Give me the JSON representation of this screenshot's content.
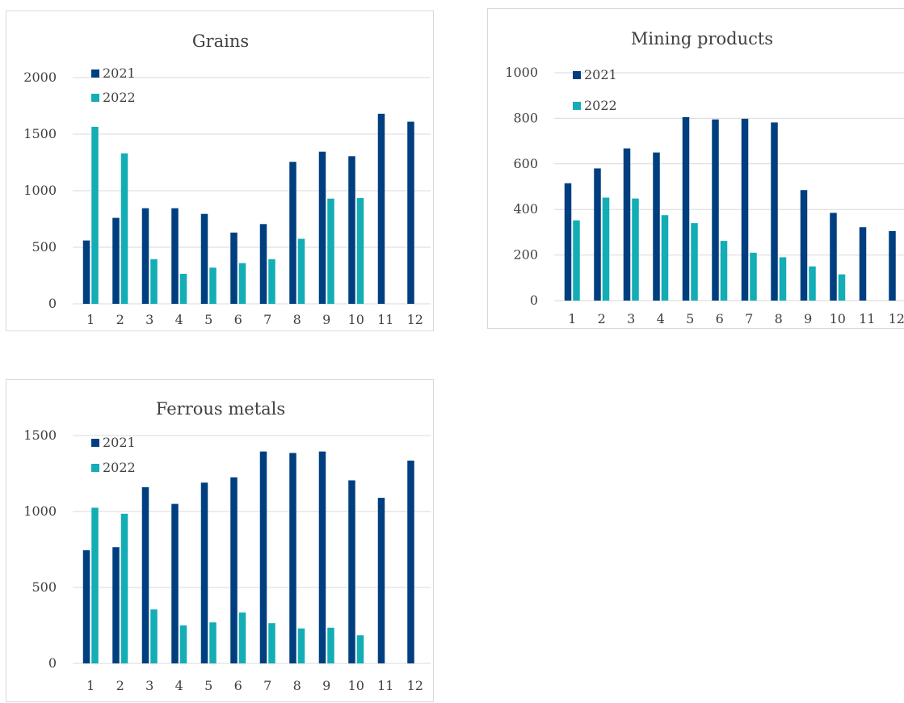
{
  "colors": {
    "s2021": "#003f7f",
    "s2022": "#13adb5",
    "grid": "#d9d9d9",
    "text": "#404040"
  },
  "chart_data": [
    {
      "type": "bar",
      "title": "Grains",
      "categories": [
        "1",
        "2",
        "3",
        "4",
        "5",
        "6",
        "7",
        "8",
        "9",
        "10",
        "11",
        "12"
      ],
      "series": [
        {
          "name": "2021",
          "values": [
            560,
            760,
            845,
            845,
            795,
            630,
            705,
            1255,
            1345,
            1305,
            1680,
            1610
          ]
        },
        {
          "name": "2022",
          "values": [
            1565,
            1330,
            395,
            265,
            320,
            360,
            395,
            575,
            930,
            935,
            null,
            null
          ]
        }
      ],
      "ylim": [
        0,
        2000
      ],
      "yticks": [
        0,
        500,
        1000,
        1500,
        2000
      ],
      "grid": true,
      "legend": "top-left"
    },
    {
      "type": "bar",
      "title": "Mining products",
      "categories": [
        "1",
        "2",
        "3",
        "4",
        "5",
        "6",
        "7",
        "8",
        "9",
        "10",
        "11",
        "12"
      ],
      "series": [
        {
          "name": "2021",
          "values": [
            515,
            580,
            668,
            650,
            805,
            795,
            798,
            782,
            485,
            385,
            322,
            305
          ]
        },
        {
          "name": "2022",
          "values": [
            352,
            452,
            448,
            375,
            340,
            262,
            210,
            190,
            150,
            115,
            null,
            null
          ]
        }
      ],
      "ylim": [
        0,
        1000
      ],
      "yticks": [
        0,
        200,
        400,
        600,
        800,
        1000
      ],
      "grid": true,
      "legend": "top-left"
    },
    {
      "type": "bar",
      "title": "Ferrous metals",
      "categories": [
        "1",
        "2",
        "3",
        "4",
        "5",
        "6",
        "7",
        "8",
        "9",
        "10",
        "11",
        "12"
      ],
      "series": [
        {
          "name": "2021",
          "values": [
            745,
            765,
            1160,
            1050,
            1190,
            1225,
            1395,
            1385,
            1395,
            1205,
            1090,
            1335
          ]
        },
        {
          "name": "2022",
          "values": [
            1025,
            985,
            355,
            250,
            270,
            335,
            265,
            230,
            235,
            185,
            null,
            null
          ]
        }
      ],
      "ylim": [
        0,
        1500
      ],
      "yticks": [
        0,
        500,
        1000,
        1500
      ],
      "grid": true,
      "legend": "top-left"
    }
  ]
}
